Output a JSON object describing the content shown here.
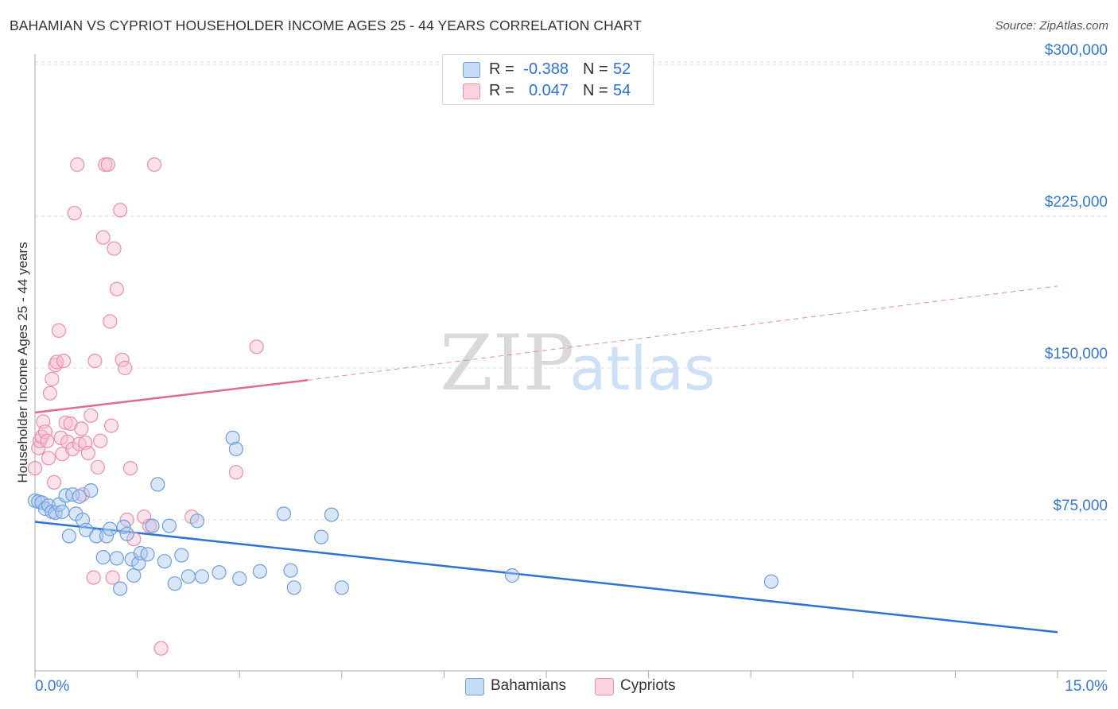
{
  "title": "BAHAMIAN VS CYPRIOT HOUSEHOLDER INCOME AGES 25 - 44 YEARS CORRELATION CHART",
  "source": "Source: ZipAtlas.com",
  "watermark": {
    "zip": "ZIP",
    "atlas": "atlas"
  },
  "colors": {
    "blue_fill": "#a9c8ef",
    "blue_stroke": "#6f9fdc",
    "blue_line": "#2f72d2",
    "pink_fill": "#f6bdd0",
    "pink_stroke": "#e98fae",
    "pink_line": "#e06a95",
    "axis_label": "#3a78c9",
    "grid": "#dddddd"
  },
  "legend_top": {
    "rows": [
      {
        "series": "Bahamians",
        "r_label": "R =",
        "r_value": "-0.388",
        "n_label": "N =",
        "n_value": "52"
      },
      {
        "series": "Cypriots",
        "r_label": "R =",
        "r_value": "0.047",
        "n_label": "N =",
        "n_value": "54"
      }
    ]
  },
  "legend_bottom": [
    "Bahamians",
    "Cypriots"
  ],
  "chart_data": {
    "type": "scatter",
    "title": "BAHAMIAN VS CYPRIOT HOUSEHOLDER INCOME AGES 25 - 44 YEARS CORRELATION CHART",
    "xlabel": "",
    "ylabel": "Householder Income Ages 25 - 44 years",
    "xlim": [
      0,
      15
    ],
    "ylim": [
      0,
      310000
    ],
    "x_tick_labels": [
      "0.0%",
      "15.0%"
    ],
    "y_ticks": [
      75000,
      150000,
      225000,
      300000
    ],
    "y_tick_labels": [
      "$75,000",
      "$150,000",
      "$225,000",
      "$300,000"
    ],
    "grid": true,
    "series": [
      {
        "name": "Bahamians",
        "r": -0.388,
        "n": 52,
        "trend": {
          "x": [
            0,
            15
          ],
          "y": [
            74000,
            19500
          ],
          "style": "solid"
        },
        "points": [
          [
            0.0,
            84500
          ],
          [
            0.05,
            84000
          ],
          [
            0.1,
            83500
          ],
          [
            0.15,
            80500
          ],
          [
            0.2,
            82000
          ],
          [
            0.25,
            79000
          ],
          [
            0.3,
            78500
          ],
          [
            0.35,
            82500
          ],
          [
            0.45,
            87000
          ],
          [
            0.55,
            87500
          ],
          [
            0.6,
            78000
          ],
          [
            0.7,
            75000
          ],
          [
            0.75,
            70000
          ],
          [
            0.82,
            89500
          ],
          [
            0.9,
            67000
          ],
          [
            1.0,
            56500
          ],
          [
            1.05,
            67000
          ],
          [
            1.1,
            70500
          ],
          [
            1.2,
            56000
          ],
          [
            1.25,
            41000
          ],
          [
            1.3,
            71500
          ],
          [
            1.35,
            68000
          ],
          [
            1.42,
            55500
          ],
          [
            1.45,
            47500
          ],
          [
            1.52,
            53500
          ],
          [
            1.55,
            58500
          ],
          [
            1.65,
            58000
          ],
          [
            1.72,
            72000
          ],
          [
            1.8,
            92500
          ],
          [
            1.9,
            54500
          ],
          [
            1.97,
            72000
          ],
          [
            2.05,
            43500
          ],
          [
            2.15,
            57500
          ],
          [
            2.25,
            47000
          ],
          [
            2.38,
            74500
          ],
          [
            2.45,
            47000
          ],
          [
            2.7,
            49000
          ],
          [
            2.9,
            115500
          ],
          [
            2.95,
            110000
          ],
          [
            3.0,
            46000
          ],
          [
            3.3,
            49500
          ],
          [
            3.65,
            78000
          ],
          [
            3.75,
            50000
          ],
          [
            3.8,
            41500
          ],
          [
            4.2,
            66500
          ],
          [
            4.35,
            77500
          ],
          [
            4.5,
            41500
          ],
          [
            7.0,
            47500
          ],
          [
            10.8,
            44500
          ],
          [
            0.5,
            67000
          ],
          [
            0.4,
            79000
          ],
          [
            0.65,
            86500
          ]
        ]
      },
      {
        "name": "Cypriots",
        "r": 0.047,
        "n": 54,
        "trend": {
          "x": [
            0,
            4.0,
            15
          ],
          "y": [
            128000,
            144000,
            190500
          ],
          "solid_until_x": 4.0
        },
        "points": [
          [
            0.0,
            100500
          ],
          [
            0.05,
            110500
          ],
          [
            0.07,
            114000
          ],
          [
            0.1,
            116000
          ],
          [
            0.12,
            123500
          ],
          [
            0.15,
            118500
          ],
          [
            0.18,
            114000
          ],
          [
            0.2,
            105500
          ],
          [
            0.22,
            137500
          ],
          [
            0.25,
            144500
          ],
          [
            0.28,
            93500
          ],
          [
            0.3,
            151500
          ],
          [
            0.32,
            153000
          ],
          [
            0.35,
            168500
          ],
          [
            0.38,
            115500
          ],
          [
            0.4,
            107500
          ],
          [
            0.42,
            153500
          ],
          [
            0.45,
            123000
          ],
          [
            0.48,
            113500
          ],
          [
            0.52,
            122500
          ],
          [
            0.55,
            110000
          ],
          [
            0.58,
            226500
          ],
          [
            0.62,
            250500
          ],
          [
            0.65,
            112500
          ],
          [
            0.7,
            87500
          ],
          [
            0.74,
            113000
          ],
          [
            0.78,
            108000
          ],
          [
            0.82,
            126500
          ],
          [
            0.88,
            153500
          ],
          [
            0.92,
            101000
          ],
          [
            0.96,
            114000
          ],
          [
            1.0,
            214500
          ],
          [
            1.03,
            250500
          ],
          [
            1.07,
            250500
          ],
          [
            1.1,
            173000
          ],
          [
            1.12,
            121500
          ],
          [
            1.14,
            46500
          ],
          [
            1.16,
            209000
          ],
          [
            1.2,
            189000
          ],
          [
            1.25,
            228000
          ],
          [
            1.28,
            154000
          ],
          [
            1.32,
            150000
          ],
          [
            1.35,
            75000
          ],
          [
            1.4,
            100500
          ],
          [
            1.45,
            65500
          ],
          [
            1.6,
            76500
          ],
          [
            1.68,
            72000
          ],
          [
            1.75,
            250500
          ],
          [
            1.85,
            11500
          ],
          [
            2.3,
            76500
          ],
          [
            2.95,
            98500
          ],
          [
            3.25,
            160500
          ],
          [
            0.68,
            120000
          ],
          [
            0.86,
            46500
          ]
        ]
      }
    ]
  }
}
